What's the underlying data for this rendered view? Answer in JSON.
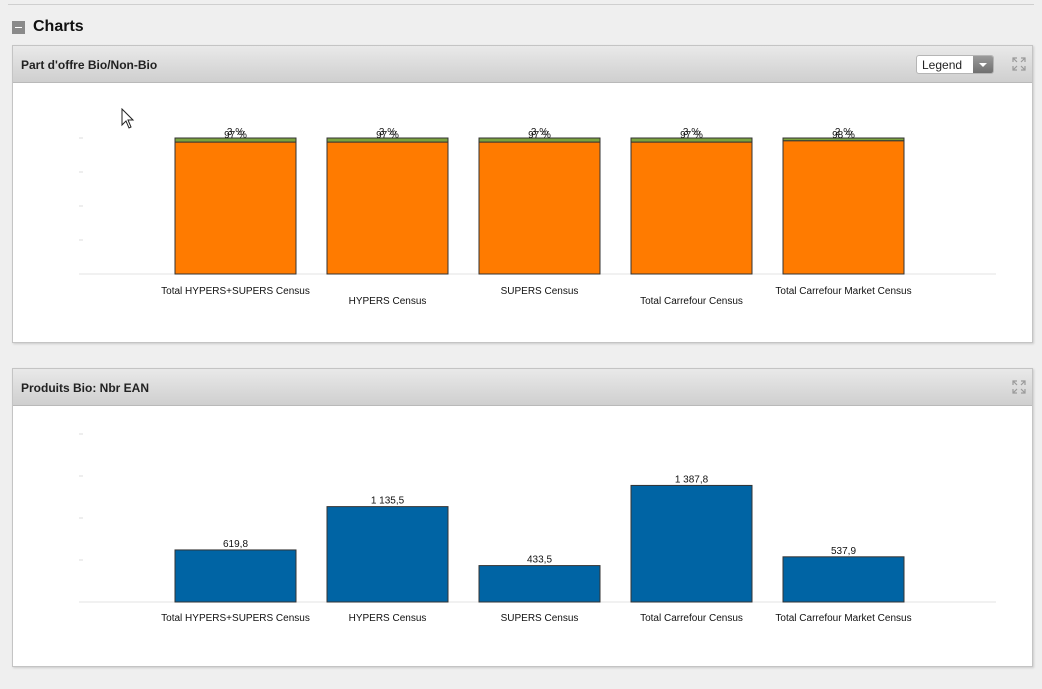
{
  "section": {
    "title": "Charts"
  },
  "panels": [
    {
      "title": "Part d'offre Bio/Non-Bio",
      "legend_label": "Legend"
    },
    {
      "title": "Produits Bio: Nbr EAN"
    }
  ],
  "colors": {
    "orange": "#ff7b00",
    "green": "#7ba23f",
    "blue": "#0064a4"
  },
  "chart_data": [
    {
      "type": "bar",
      "stacked": true,
      "categories": [
        "Total HYPERS+SUPERS Census",
        "HYPERS Census",
        "SUPERS Census",
        "Total Carrefour Census",
        "Total Carrefour Market Census"
      ],
      "series": [
        {
          "values": [
            97,
            97,
            97,
            97,
            98
          ],
          "labels": [
            "97 %",
            "97 %",
            "97 %",
            "97 %",
            "98 %"
          ],
          "color": "#ff7b00"
        },
        {
          "values": [
            3,
            3,
            3,
            3,
            2
          ],
          "labels": [
            "3 %",
            "3 %",
            "3 %",
            "3 %",
            "2 %"
          ],
          "color": "#7ba23f"
        }
      ],
      "ylim": [
        0,
        100
      ],
      "grid": false
    },
    {
      "type": "bar",
      "categories": [
        "Total HYPERS+SUPERS Census",
        "HYPERS Census",
        "SUPERS Census",
        "Total Carrefour Census",
        "Total Carrefour Market Census"
      ],
      "values": [
        619.8,
        1135.5,
        433.5,
        1387.8,
        537.9
      ],
      "labels": [
        "619,8",
        "1 135,5",
        "433,5",
        "1 387,8",
        "537,9"
      ],
      "ylim": [
        0,
        2000
      ],
      "color": "#0064a4",
      "grid": false
    }
  ]
}
